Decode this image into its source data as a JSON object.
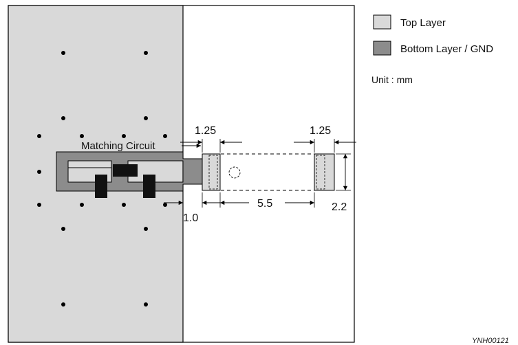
{
  "legend": {
    "top_layer": {
      "label": "Top Layer",
      "color": "#d9d9d9"
    },
    "bottom_layer": {
      "label": "Bottom Layer / GND",
      "color": "#8c8c8c"
    }
  },
  "unit_label": "Unit : mm",
  "circuit_label": "Matching Circuit",
  "dimensions": {
    "pad_width_left": "1.25",
    "pad_width_right": "1.25",
    "pad_spacing": "5.5",
    "pad_height": "2.2",
    "line_width": "1.0"
  },
  "figure_id": "YNH00121",
  "colors": {
    "ground_fill": "#d9d9d9",
    "trace_fill": "#8c8c8c",
    "component": "#111111",
    "outline": "#000000"
  }
}
